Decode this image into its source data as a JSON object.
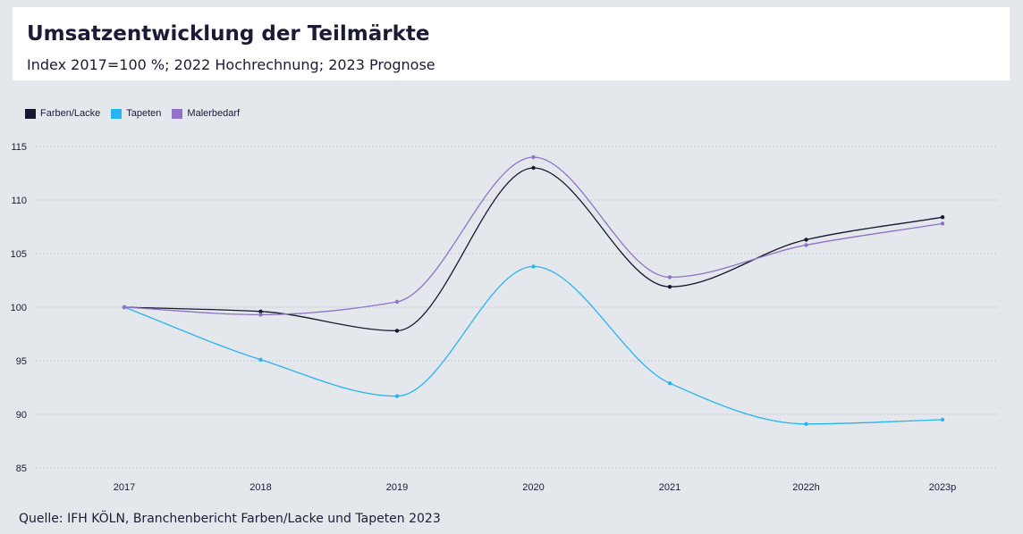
{
  "header": {
    "title": "Umsatzentwicklung der Teilmärkte",
    "subtitle": "Index 2017=100 %; 2022 Hochrechnung; 2023 Prognose"
  },
  "source": "Quelle: IFH KÖLN, Branchenbericht Farben/Lacke und Tapeten 2023",
  "chart_data": {
    "type": "line",
    "title": "Umsatzentwicklung der Teilmärkte",
    "subtitle": "Index 2017=100 %; 2022 Hochrechnung; 2023 Prognose",
    "categories": [
      "2017",
      "2018",
      "2019",
      "2020",
      "2021",
      "2022h",
      "2023p"
    ],
    "ylim": [
      85,
      115
    ],
    "yticks": [
      85,
      90,
      95,
      100,
      105,
      110,
      115
    ],
    "grid": true,
    "legend_position": "top-left",
    "series": [
      {
        "name": "Farben/Lacke",
        "color": "#17172f",
        "values": [
          100,
          99.6,
          97.8,
          113.0,
          101.9,
          106.3,
          108.4
        ]
      },
      {
        "name": "Tapeten",
        "color": "#27b5ef",
        "values": [
          100,
          95.1,
          91.7,
          103.8,
          92.9,
          89.1,
          89.5
        ]
      },
      {
        "name": "Malerbedarf",
        "color": "#8f73c6",
        "values": [
          100,
          99.3,
          100.5,
          114.0,
          102.8,
          105.8,
          107.8
        ]
      }
    ]
  }
}
